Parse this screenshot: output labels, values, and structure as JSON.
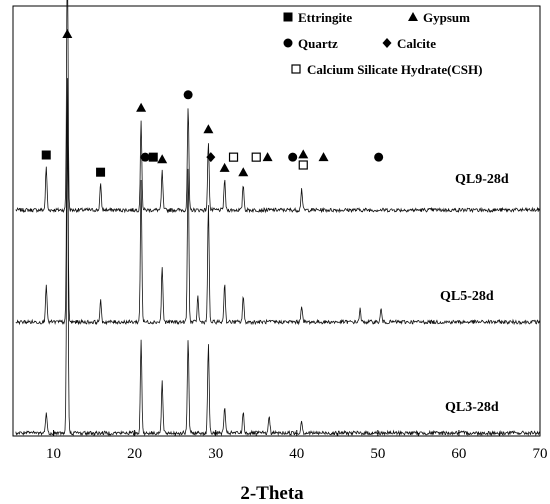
{
  "chart_data": {
    "type": "line",
    "xlabel": "2-Theta",
    "ylabel": "",
    "xlim": [
      5,
      70
    ],
    "x_ticks": [
      10,
      20,
      30,
      40,
      50,
      60,
      70
    ],
    "grid": false,
    "legend_position": "top-right",
    "legend": [
      {
        "marker": "filled-square",
        "name": "Ettringite"
      },
      {
        "marker": "filled-triangle",
        "name": "Gypsum"
      },
      {
        "marker": "filled-circle",
        "name": "Quartz"
      },
      {
        "marker": "filled-diamond",
        "name": "Calcite"
      },
      {
        "marker": "open-square",
        "name": "Calcium Silicate Hydrate(CSH)"
      }
    ],
    "series": [
      {
        "name": "QL9-28d",
        "peaks": [
          {
            "x": 9.1,
            "h": 0.1
          },
          {
            "x": 11.7,
            "h": 0.6
          },
          {
            "x": 15.8,
            "h": 0.06
          },
          {
            "x": 20.8,
            "h": 0.21
          },
          {
            "x": 23.4,
            "h": 0.09
          },
          {
            "x": 26.6,
            "h": 0.24
          },
          {
            "x": 29.1,
            "h": 0.16
          },
          {
            "x": 31.1,
            "h": 0.07
          },
          {
            "x": 33.4,
            "h": 0.06
          },
          {
            "x": 40.6,
            "h": 0.05
          }
        ],
        "markers": [
          {
            "type": "filled-square",
            "x": 9.1
          },
          {
            "type": "filled-triangle",
            "x": 11.7
          },
          {
            "type": "filled-square",
            "x": 15.8
          },
          {
            "type": "filled-triangle",
            "x": 20.8
          },
          {
            "type": "filled-circle",
            "x": 21.3
          },
          {
            "type": "filled-square",
            "x": 22.3
          },
          {
            "type": "filled-triangle",
            "x": 23.4
          },
          {
            "type": "filled-circle",
            "x": 26.6
          },
          {
            "type": "filled-triangle",
            "x": 29.1
          },
          {
            "type": "filled-diamond",
            "x": 29.4
          },
          {
            "type": "filled-triangle",
            "x": 31.1
          },
          {
            "type": "open-square",
            "x": 32.2
          },
          {
            "type": "filled-triangle",
            "x": 33.4
          },
          {
            "type": "open-square",
            "x": 35.0
          },
          {
            "type": "filled-triangle",
            "x": 36.4
          },
          {
            "type": "filled-circle",
            "x": 39.5
          },
          {
            "type": "filled-triangle",
            "x": 40.8
          },
          {
            "type": "open-square",
            "x": 40.8
          },
          {
            "type": "filled-triangle",
            "x": 43.3
          },
          {
            "type": "filled-circle",
            "x": 50.1
          }
        ]
      },
      {
        "name": "QL5-28d",
        "peaks": [
          {
            "x": 9.1,
            "h": 0.09
          },
          {
            "x": 11.7,
            "h": 0.57
          },
          {
            "x": 15.8,
            "h": 0.05
          },
          {
            "x": 20.8,
            "h": 0.33
          },
          {
            "x": 23.4,
            "h": 0.13
          },
          {
            "x": 26.6,
            "h": 0.36
          },
          {
            "x": 27.8,
            "h": 0.06
          },
          {
            "x": 29.1,
            "h": 0.27
          },
          {
            "x": 31.1,
            "h": 0.09
          },
          {
            "x": 33.4,
            "h": 0.06
          },
          {
            "x": 40.6,
            "h": 0.04
          },
          {
            "x": 47.8,
            "h": 0.03
          },
          {
            "x": 50.4,
            "h": 0.03
          }
        ],
        "markers": []
      },
      {
        "name": "QL3-28d",
        "peaks": [
          {
            "x": 9.1,
            "h": 0.05
          },
          {
            "x": 11.7,
            "h": 0.75
          },
          {
            "x": 20.8,
            "h": 0.22
          },
          {
            "x": 23.4,
            "h": 0.12
          },
          {
            "x": 26.6,
            "h": 0.22
          },
          {
            "x": 29.1,
            "h": 0.21
          },
          {
            "x": 31.1,
            "h": 0.06
          },
          {
            "x": 33.4,
            "h": 0.05
          },
          {
            "x": 36.6,
            "h": 0.04
          },
          {
            "x": 40.6,
            "h": 0.03
          }
        ],
        "markers": []
      }
    ]
  }
}
